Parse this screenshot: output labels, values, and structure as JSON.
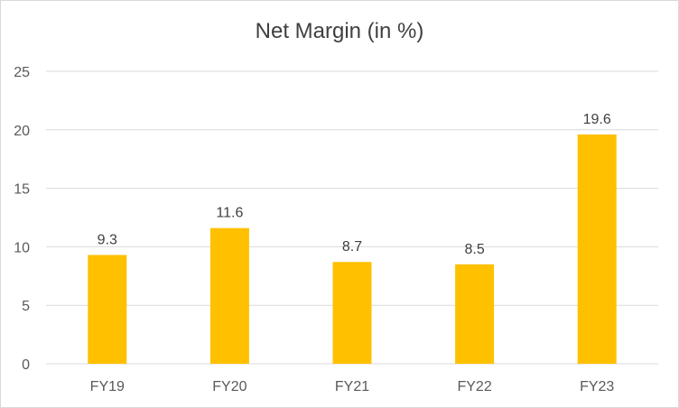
{
  "chart_data": {
    "type": "bar",
    "title": "Net Margin (in %)",
    "categories": [
      "FY19",
      "FY20",
      "FY21",
      "FY22",
      "FY23"
    ],
    "values": [
      9.3,
      11.6,
      8.7,
      8.5,
      19.6
    ],
    "data_labels": [
      "9.3",
      "11.6",
      "8.7",
      "8.5",
      "19.6"
    ],
    "ylim": [
      0,
      25
    ],
    "yticks": [
      0,
      5,
      10,
      15,
      20,
      25
    ],
    "grid": true,
    "legend": "none",
    "colors": {
      "bar": "#FFC000",
      "grid": "#d9d9d9",
      "text": "#595959"
    }
  }
}
